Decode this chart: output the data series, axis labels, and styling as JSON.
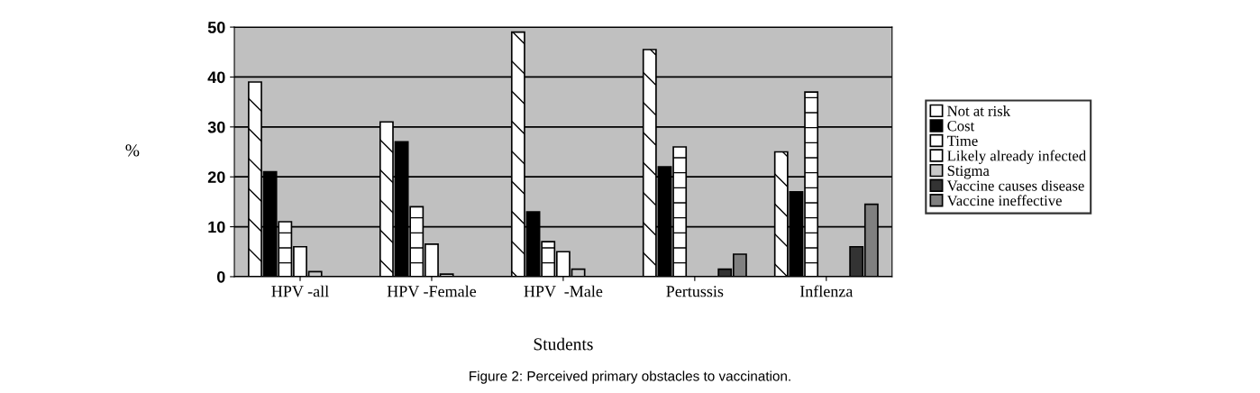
{
  "chart_data": {
    "type": "bar",
    "categories": [
      "HPV -all",
      "HPV -Female",
      "HPV  -Male",
      "Pertussis",
      "Inflenza"
    ],
    "series": [
      {
        "name": "Not at risk",
        "color": "#ffffff",
        "values": [
          39,
          31,
          49,
          45.5,
          25
        ]
      },
      {
        "name": "Cost",
        "color": "#000000",
        "values": [
          21,
          27,
          13,
          22,
          17
        ]
      },
      {
        "name": "Time",
        "color": "#ffffff",
        "values": [
          11,
          14,
          7,
          26,
          37
        ]
      },
      {
        "name": "Likely already infected",
        "color": "#ffffff",
        "values": [
          6,
          6.5,
          5,
          null,
          null
        ]
      },
      {
        "name": "Stigma",
        "color": "#c8c8c8",
        "values": [
          1,
          0.5,
          1.5,
          null,
          null
        ]
      },
      {
        "name": "Vaccine causes disease",
        "color": "#333333",
        "values": [
          null,
          null,
          null,
          1.5,
          6
        ]
      },
      {
        "name": "Vaccine ineffective",
        "color": "#808080",
        "values": [
          null,
          null,
          null,
          4.5,
          14.5
        ]
      }
    ],
    "ylim": [
      0,
      50
    ],
    "yticks": [
      0,
      10,
      20,
      30,
      40,
      50
    ],
    "grid": "y",
    "legend": "right",
    "xlabel": "Students",
    "ylabel": "%",
    "annotations": [
      "Figure 2: Perceived primary obstacles to vaccination."
    ]
  }
}
